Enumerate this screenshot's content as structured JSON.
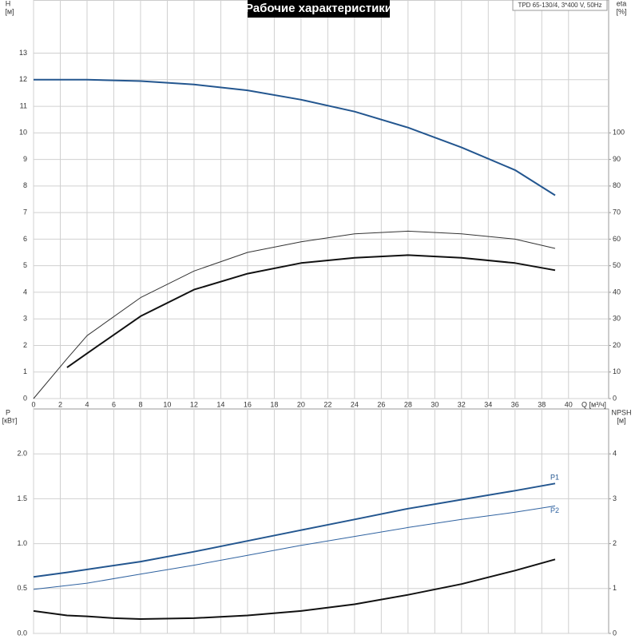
{
  "title": "Рабочие характеристики",
  "info": "TPD 65-130/4, 3*400 V, 50Hz",
  "chart_data": [
    {
      "type": "line",
      "ylabel": "H",
      "yunit": "[м]",
      "y2label": "eta",
      "y2unit": "[%]",
      "xlabel": "Q [м³/ч]",
      "xlim": [
        0,
        43
      ],
      "xticks": [
        0,
        2,
        4,
        6,
        8,
        10,
        12,
        14,
        16,
        18,
        20,
        22,
        24,
        26,
        28,
        30,
        32,
        34,
        36,
        38,
        40
      ],
      "show_xtick_labels": true,
      "ylim": [
        0,
        15
      ],
      "yticks": [
        0,
        1,
        2,
        3,
        4,
        5,
        6,
        7,
        8,
        9,
        10,
        11,
        12,
        13
      ],
      "y2lim": [
        0,
        150
      ],
      "y2ticks": [
        0,
        10,
        20,
        30,
        40,
        50,
        60,
        70,
        80,
        90,
        100
      ],
      "grid": true,
      "series": [
        {
          "color": "#23568f",
          "linewidth": 2,
          "x": [
            0,
            4,
            8,
            12,
            16,
            20,
            24,
            28,
            32,
            36,
            39
          ],
          "values": [
            12,
            12.0,
            11.95,
            11.82,
            11.6,
            11.25,
            10.8,
            10.2,
            9.45,
            8.6,
            7.65
          ]
        },
        {
          "color": "#333333",
          "linewidth": 1,
          "axis": "y2",
          "x": [
            0,
            2.5,
            4,
            8,
            12,
            16,
            20,
            24,
            28,
            32,
            36,
            39
          ],
          "values": [
            0,
            15,
            23.7,
            38,
            48,
            55,
            59,
            62,
            63,
            62,
            60,
            56.5
          ]
        },
        {
          "color": "#111111",
          "linewidth": 2,
          "axis": "y2",
          "x": [
            2.5,
            4,
            8,
            12,
            16,
            20,
            24,
            28,
            32,
            36,
            39
          ],
          "values": [
            11.7,
            17,
            31,
            41,
            47,
            51,
            53,
            54,
            53,
            51,
            48.3
          ]
        }
      ]
    },
    {
      "type": "line",
      "ylabel": "P",
      "yunit": "[кВт]",
      "y2label": "NPSH",
      "y2unit": "[м]",
      "xlim": [
        0,
        43
      ],
      "xticks": [
        0,
        2,
        4,
        6,
        8,
        10,
        12,
        14,
        16,
        18,
        20,
        22,
        24,
        26,
        28,
        30,
        32,
        34,
        36,
        38,
        40
      ],
      "show_xtick_labels": false,
      "ylim": [
        0,
        2.5
      ],
      "yticks": [
        {
          "value": 0,
          "label": "0.0"
        },
        0.5,
        {
          "value": 1,
          "label": "1.0"
        },
        1.5,
        {
          "value": 2,
          "label": "2.0"
        }
      ],
      "y2lim": [
        0,
        5
      ],
      "y2ticks": [
        0,
        1,
        2,
        3,
        4
      ],
      "grid": true,
      "series": [
        {
          "name": "P1",
          "color": "#23568f",
          "linewidth": 2,
          "x": [
            0,
            2.5,
            8,
            12,
            16,
            20,
            24,
            28,
            32,
            36,
            39
          ],
          "values": [
            0.63,
            0.68,
            0.8,
            0.91,
            1.03,
            1.15,
            1.27,
            1.39,
            1.49,
            1.59,
            1.67
          ]
        },
        {
          "name": "P2",
          "color": "#2f62a0",
          "linewidth": 1,
          "x": [
            0,
            4,
            8,
            12,
            16,
            20,
            24,
            28,
            32,
            36,
            39
          ],
          "values": [
            0.49,
            0.56,
            0.66,
            0.76,
            0.87,
            0.98,
            1.08,
            1.18,
            1.27,
            1.35,
            1.42
          ]
        },
        {
          "color": "#111111",
          "linewidth": 2,
          "axis": "y2",
          "x": [
            0,
            2.5,
            4,
            6,
            8,
            12,
            16,
            20,
            24,
            28,
            32,
            36,
            39
          ],
          "values": [
            0.5,
            0.4,
            0.38,
            0.34,
            0.32,
            0.34,
            0.4,
            0.5,
            0.65,
            0.86,
            1.1,
            1.4,
            1.65
          ]
        }
      ]
    }
  ]
}
